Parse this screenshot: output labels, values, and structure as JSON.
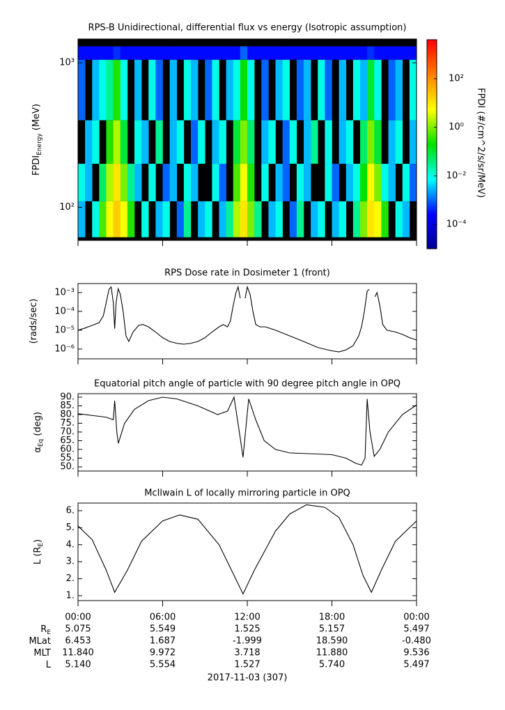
{
  "chart_data": [
    {
      "type": "heatmap",
      "title": "RPS-B  Unidirectional, differential flux vs energy (Isotropic assumption)",
      "ylabel": [
        "FPDI",
        "Energy",
        " (MeV)"
      ],
      "ylog": true,
      "ylim": [
        59,
        1460
      ],
      "xlim": [
        0,
        24
      ],
      "yticks": [
        {
          "value": 100,
          "label": "10²"
        },
        {
          "value": 1000,
          "label": "10³"
        }
      ],
      "x_edges": [
        0,
        0.5,
        1,
        1.5,
        2,
        2.5,
        3,
        3.5,
        4,
        4.5,
        5,
        5.5,
        6,
        6.5,
        7,
        7.5,
        8,
        8.5,
        9,
        9.5,
        10,
        10.5,
        11,
        11.5,
        12,
        12.5,
        13,
        13.5,
        14,
        14.5,
        15,
        15.5,
        16,
        16.5,
        17,
        17.5,
        18,
        18.5,
        19,
        19.5,
        20,
        20.5,
        21,
        21.5,
        22,
        22.5,
        23,
        23.5,
        24
      ],
      "y_edges": [
        62,
        110,
        200,
        400,
        1050,
        1300
      ],
      "values": [
        [
          0.003,
          null,
          0.01,
          0.5,
          5,
          20,
          5,
          0.3,
          null,
          0.01,
          null,
          0.003,
          0.01,
          null,
          0.001,
          0.03,
          null,
          0.003,
          0.01,
          null,
          0.003,
          0.03,
          2,
          10,
          1,
          0.03,
          null,
          0.003,
          0.01,
          null,
          0.001,
          0.03,
          null,
          0.003,
          0.01,
          null,
          0.003,
          0.01,
          null,
          0.03,
          1,
          10,
          5,
          0.3,
          null,
          0.01,
          0.003,
          null
        ],
        [
          0.01,
          0.003,
          null,
          0.05,
          2,
          10,
          1,
          0.03,
          0.003,
          null,
          0.01,
          null,
          0.001,
          0.003,
          null,
          0.01,
          0.003,
          null,
          null,
          0.01,
          0.001,
          null,
          0.5,
          5,
          0.3,
          null,
          0.01,
          null,
          0.003,
          0.001,
          null,
          0.01,
          0.003,
          null,
          null,
          0.01,
          0.001,
          null,
          0.003,
          0.01,
          0.2,
          5,
          1,
          0.01,
          0.003,
          null,
          0.01,
          0.001
        ],
        [
          null,
          0.003,
          0.01,
          null,
          0.3,
          2,
          0.1,
          null,
          0.01,
          0.003,
          null,
          0.03,
          null,
          0.003,
          0.01,
          null,
          0.001,
          0.01,
          null,
          0.003,
          0.01,
          null,
          0.1,
          1,
          0.05,
          null,
          0.003,
          0.01,
          null,
          0.001,
          0.01,
          null,
          0.003,
          0.03,
          null,
          0.01,
          null,
          0.003,
          0.01,
          null,
          0.05,
          1,
          0.1,
          null,
          0.003,
          0.01,
          null,
          0.003
        ],
        [
          0.001,
          null,
          0.003,
          0.01,
          0.03,
          0.3,
          0.01,
          null,
          0.003,
          null,
          0.01,
          0.001,
          null,
          0.003,
          null,
          0.01,
          0.003,
          null,
          0.001,
          0.01,
          null,
          0.003,
          0.01,
          0.2,
          0.01,
          null,
          0.001,
          null,
          0.003,
          0.01,
          null,
          0.001,
          0.003,
          null,
          0.01,
          0.001,
          null,
          0.003,
          null,
          0.01,
          0.003,
          0.1,
          0.01,
          null,
          0.001,
          0.003,
          null,
          0.01
        ],
        [
          0.0003,
          0.0003,
          0.0003,
          0.0003,
          0.0003,
          0.0005,
          0.0003,
          0.0003,
          0.0003,
          0.0003,
          0.0003,
          0.0003,
          0.0003,
          0.0003,
          0.0003,
          0.0003,
          0.0003,
          0.0003,
          0.0003,
          0.0003,
          0.0003,
          0.0003,
          0.0003,
          0.001,
          0.0003,
          0.0003,
          0.0003,
          0.0003,
          0.0003,
          0.0003,
          0.0003,
          0.0003,
          0.0003,
          0.0003,
          0.0003,
          0.0003,
          0.0003,
          0.0003,
          0.0003,
          0.0003,
          0.0003,
          0.0005,
          0.0003,
          0.0003,
          0.0003,
          0.0003,
          0.0003,
          0.0003
        ]
      ],
      "colorbar": {
        "label": "FPDI (#/cm^2/s/sr/MeV)",
        "zlim": [
          1e-05,
          4000
        ],
        "ticks": [
          {
            "value": 100,
            "label": "10²"
          },
          {
            "value": 1,
            "label": "10⁰"
          },
          {
            "value": 0.01,
            "label": "10⁻²"
          },
          {
            "value": 0.0001,
            "label": "10⁻⁴"
          }
        ],
        "colormap": [
          "#000090",
          "#0000ff",
          "#00ffff",
          "#00e000",
          "#ffff00",
          "#ff8000",
          "#ff0000"
        ]
      }
    },
    {
      "type": "line",
      "title": "RPS  Dose rate in Dosimeter 1 (front)",
      "ylabel": [
        "(rads/sec)"
      ],
      "ylog": true,
      "ylim": [
        3e-07,
        0.003
      ],
      "xlim": [
        0,
        24
      ],
      "color": "#000000",
      "yticks": [
        {
          "value": 0.001,
          "label": "10⁻³"
        },
        {
          "value": 0.0001,
          "label": "10⁻⁴"
        },
        {
          "value": 1e-05,
          "label": "10⁻⁵"
        },
        {
          "value": 1e-06,
          "label": "10⁻⁶"
        }
      ],
      "x": [
        0,
        0.5,
        1,
        1.5,
        1.8,
        2,
        2.2,
        2.35,
        2.5,
        2.6,
        2.7,
        2.85,
        3,
        3.2,
        3.4,
        3.6,
        3.9,
        4.3,
        4.6,
        5,
        5.5,
        6,
        6.5,
        7,
        7.5,
        8,
        8.5,
        9,
        9.5,
        10,
        10.3,
        10.6,
        10.8,
        11,
        11.2,
        11.35,
        11.5,
        11.6,
        11.75,
        11.85,
        12,
        12.2,
        12.4,
        12.6,
        12.9,
        13.3,
        14,
        15,
        16,
        17,
        18,
        18.5,
        19,
        19.5,
        19.9,
        20.1,
        20.3,
        20.5,
        20.65,
        20.8,
        20.95,
        21.05,
        21.2,
        21.4,
        21.6,
        21.9,
        22.5,
        23,
        23.5,
        24
      ],
      "values": [
        1e-05,
        1.3e-05,
        1.8e-05,
        2.5e-05,
        6e-05,
        0.0003,
        0.0015,
        0.002,
        0.0003,
        1.2e-05,
        0.0003,
        0.0016,
        0.0008,
        0.0001,
        5e-06,
        2.5e-06,
        8e-06,
        1.8e-05,
        2e-05,
        1.5e-05,
        8e-06,
        4e-06,
        2.5e-06,
        2e-06,
        1.8e-06,
        2e-06,
        2.5e-06,
        4e-06,
        8e-06,
        1.5e-05,
        2e-05,
        1.5e-05,
        3e-05,
        0.0002,
        0.001,
        0.002,
        0.0005,
        null,
        null,
        0.0005,
        0.002,
        0.0008,
        0.0001,
        2e-05,
        1.5e-05,
        1.5e-05,
        1e-05,
        5e-06,
        2.5e-06,
        1.2e-06,
        8e-07,
        7e-07,
        9e-07,
        1.5e-06,
        5e-06,
        1.5e-05,
        0.0001,
        0.0012,
        0.0015,
        null,
        null,
        0.0006,
        0.001,
        0.0002,
        2e-05,
        1e-05,
        8e-06,
        6e-06,
        4e-06,
        3e-06
      ]
    },
    {
      "type": "line",
      "title": "Equatorial pitch angle of particle with 90 degree pitch angle in OPQ",
      "ylabel": [
        "α",
        "Eq",
        " (deg)"
      ],
      "ylim": [
        47.6,
        92
      ],
      "xlim": [
        0,
        24
      ],
      "color": "#000000",
      "yticks": [
        {
          "value": 50,
          "label": "50."
        },
        {
          "value": 55,
          "label": "55."
        },
        {
          "value": 60,
          "label": "60."
        },
        {
          "value": 65,
          "label": "65."
        },
        {
          "value": 70,
          "label": "70."
        },
        {
          "value": 75,
          "label": "75."
        },
        {
          "value": 80,
          "label": "80."
        },
        {
          "value": 85,
          "label": "85."
        },
        {
          "value": 90,
          "label": "90."
        }
      ],
      "x": [
        0,
        1,
        2,
        2.5,
        2.6,
        2.75,
        2.86,
        3.3,
        4,
        5,
        6,
        7,
        8.5,
        9.9,
        10.6,
        11.06,
        11.4,
        11.7,
        12.1,
        12.6,
        13.2,
        14,
        15,
        16.5,
        18,
        19,
        19.7,
        20.1,
        20.35,
        20.5,
        20.7,
        21,
        21.4,
        22,
        23,
        24
      ],
      "values": [
        80.5,
        79.5,
        78.5,
        77,
        88,
        70,
        63.5,
        75,
        83,
        88,
        90,
        89,
        85,
        80,
        82,
        90,
        72,
        55.5,
        89,
        77,
        65,
        60,
        58,
        57.5,
        57,
        55,
        52,
        51,
        55,
        89,
        70,
        56,
        60,
        70,
        80,
        85.5
      ]
    },
    {
      "type": "line",
      "title": "McIlwain L of locally mirroring particle in OPQ",
      "ylabel": [
        "L (R",
        "E",
        ")"
      ],
      "ylim": [
        0.71,
        6.45
      ],
      "xlim": [
        0,
        24
      ],
      "color": "#000000",
      "yticks": [
        {
          "value": 1,
          "label": "1."
        },
        {
          "value": 2,
          "label": "2."
        },
        {
          "value": 3,
          "label": "3."
        },
        {
          "value": 4,
          "label": "4."
        },
        {
          "value": 5,
          "label": "5."
        },
        {
          "value": 6,
          "label": "6."
        }
      ],
      "x": [
        0,
        1,
        2,
        2.6,
        3.5,
        4.5,
        6,
        7.2,
        8.5,
        10,
        11,
        11.7,
        12.5,
        14,
        15,
        16.2,
        17.5,
        18.5,
        19.5,
        20.2,
        20.8,
        21.5,
        22.5,
        24
      ],
      "values": [
        5.1,
        4.3,
        2.5,
        1.2,
        2.5,
        4.2,
        5.4,
        5.75,
        5.5,
        4,
        2.3,
        1.1,
        2.5,
        4.8,
        5.8,
        6.35,
        6.2,
        5.6,
        4,
        2.2,
        1.2,
        2.5,
        4.2,
        5.4
      ]
    }
  ],
  "time_axis": {
    "xticks": [
      {
        "value": 0,
        "label": "00:00"
      },
      {
        "value": 6,
        "label": "06:00"
      },
      {
        "value": 12,
        "label": "12:00"
      },
      {
        "value": 18,
        "label": "18:00"
      },
      {
        "value": 24,
        "label": "00:00"
      }
    ],
    "rows": [
      {
        "label": [
          "R",
          "E"
        ],
        "values": [
          "5.075",
          "5.549",
          "1.525",
          "5.157",
          "5.497"
        ]
      },
      {
        "label": [
          "MLat"
        ],
        "values": [
          "6.453",
          "1.687",
          "-1.999",
          "18.590",
          "-0.480"
        ]
      },
      {
        "label": [
          "MLT"
        ],
        "values": [
          "11.840",
          "9.972",
          "3.718",
          "11.880",
          "9.536"
        ]
      },
      {
        "label": [
          "L"
        ],
        "values": [
          "5.140",
          "5.554",
          "1.527",
          "5.740",
          "5.497"
        ]
      }
    ],
    "date": "2017-11-03 (307)"
  }
}
